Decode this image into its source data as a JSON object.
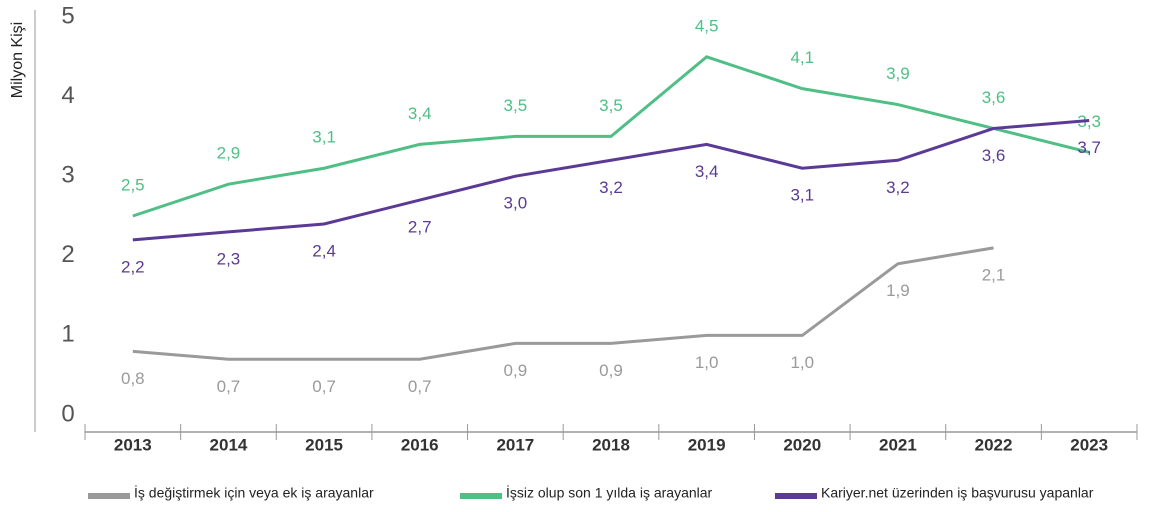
{
  "chart_data": {
    "type": "line",
    "y_label": "Milyon Kişi",
    "categories": [
      "2013",
      "2014",
      "2015",
      "2016",
      "2017",
      "2018",
      "2019",
      "2020",
      "2021",
      "2022",
      "2023"
    ],
    "series": [
      {
        "name": "İş değiştirmek için veya ek iş arayanlar",
        "color": "#9a9a9a",
        "values": [
          0.8,
          0.7,
          0.7,
          0.7,
          0.9,
          0.9,
          1.0,
          1.0,
          1.9,
          2.1,
          null
        ],
        "value_labels": [
          "0,8",
          "0,7",
          "0,7",
          "0,7",
          "0,9",
          "0,9",
          "1,0",
          "1,0",
          "1,9",
          "2,1",
          null
        ]
      },
      {
        "name": "İşsiz olup son 1 yılda iş arayanlar",
        "color": "#4fbf85",
        "values": [
          2.5,
          2.9,
          3.1,
          3.4,
          3.5,
          3.5,
          4.5,
          4.1,
          3.9,
          3.6,
          3.3
        ],
        "value_labels": [
          "2,5",
          "2,9",
          "3,1",
          "3,4",
          "3,5",
          "3,5",
          "4,5",
          "4,1",
          "3,9",
          "3,6",
          "3,3"
        ]
      },
      {
        "name": "Kariyer.net üzerinden iş başvurusu yapanlar",
        "color": "#5b3a96",
        "values": [
          2.2,
          2.3,
          2.4,
          2.7,
          3.0,
          3.2,
          3.4,
          3.1,
          3.2,
          3.6,
          3.7
        ],
        "value_labels": [
          "2,2",
          "2,3",
          "2,4",
          "2,7",
          "3,0",
          "3,2",
          "3,4",
          "3,1",
          "3,2",
          "3,6",
          "3,7"
        ]
      }
    ],
    "ylim": [
      0,
      5
    ],
    "yticks": [
      0,
      1,
      2,
      3,
      4,
      5
    ]
  }
}
